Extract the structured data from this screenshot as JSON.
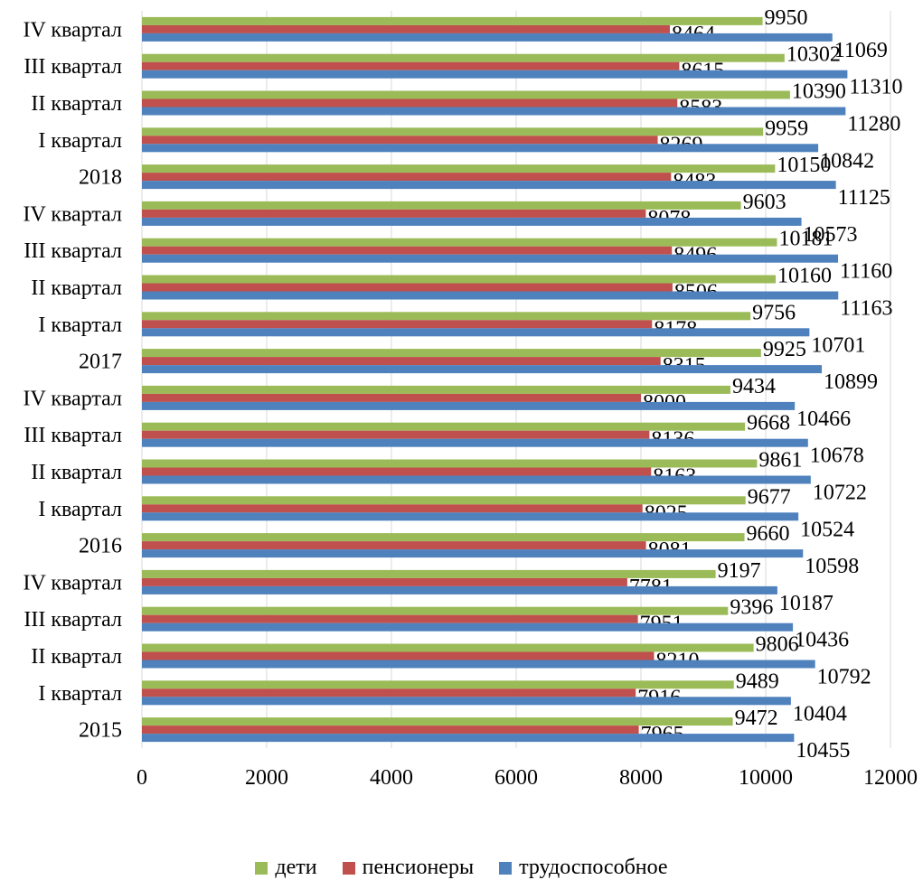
{
  "chart_data": {
    "type": "bar",
    "orientation": "horizontal",
    "categories": [
      "IV квартал",
      "III квартал",
      "II квартал",
      "I квартал",
      "2018",
      "IV квартал",
      "III квартал",
      "II квартал",
      "I квартал",
      "2017",
      "IV квартал",
      "III квартал",
      "II квартал",
      "I квартал",
      "2016",
      "IV квартал",
      "III квартал",
      "II квартал",
      "I квартал",
      "2015"
    ],
    "series": [
      {
        "name": "дети",
        "color": "#9bbb59",
        "values": [
          9950,
          10302,
          10390,
          9959,
          10150,
          9603,
          10181,
          10160,
          9756,
          9925,
          9434,
          9668,
          9861,
          9677,
          9660,
          9197,
          9396,
          9806,
          9489,
          9472
        ]
      },
      {
        "name": "пенсионеры",
        "color": "#c0504d",
        "values": [
          8464,
          8615,
          8583,
          8269,
          8483,
          8078,
          8496,
          8506,
          8178,
          8315,
          8000,
          8136,
          8163,
          8025,
          8081,
          7781,
          7951,
          8210,
          7916,
          7965
        ]
      },
      {
        "name": "трудоспособное",
        "color": "#4f81bd",
        "values": [
          11069,
          11310,
          11280,
          10842,
          11125,
          10573,
          11160,
          11163,
          10701,
          10899,
          10466,
          10678,
          10722,
          10524,
          10598,
          10187,
          10436,
          10792,
          10404,
          10455
        ]
      }
    ],
    "x_ticks": [
      "0",
      "2000",
      "4000",
      "6000",
      "8000",
      "10000",
      "12000"
    ],
    "xlim": [
      0,
      12000
    ],
    "grid": "vertical",
    "legend_position": "bottom",
    "title": "",
    "xlabel": "",
    "ylabel": ""
  }
}
